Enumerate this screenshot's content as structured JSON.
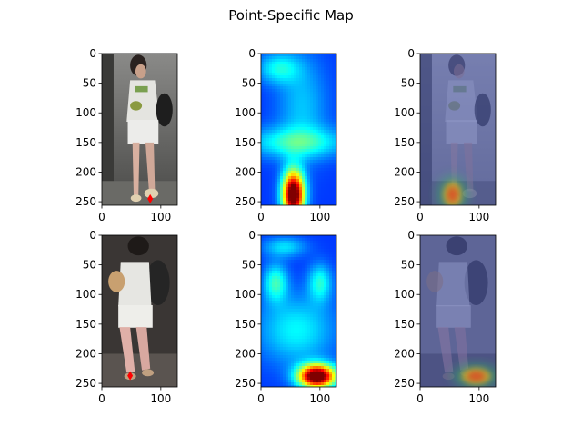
{
  "chart_data": {
    "type": "image-grid",
    "title": "Point-Specific Map",
    "rows": 2,
    "cols": 3,
    "panels": [
      {
        "row": 0,
        "col": 0,
        "kind": "photo",
        "scene": "walk1",
        "marker": {
          "x": 82,
          "y": 245,
          "color": "#ff0000",
          "shape": "diamond"
        }
      },
      {
        "row": 0,
        "col": 1,
        "kind": "heatmap",
        "hot": [
          {
            "x": 55,
            "y": 238,
            "sx": 13,
            "sy": 28,
            "w": 1.0
          }
        ],
        "warm": [
          {
            "x": 30,
            "y": 25,
            "sx": 25,
            "sy": 18,
            "w": 0.35
          },
          {
            "x": 60,
            "y": 150,
            "sx": 60,
            "sy": 18,
            "w": 0.4
          },
          {
            "x": 70,
            "y": 90,
            "sx": 30,
            "sy": 60,
            "w": 0.25
          }
        ]
      },
      {
        "row": 0,
        "col": 2,
        "kind": "overlay",
        "scene": "walk1",
        "hot": [
          {
            "x": 55,
            "y": 238,
            "sx": 16,
            "sy": 24,
            "w": 1.0
          }
        ]
      },
      {
        "row": 1,
        "col": 0,
        "kind": "photo",
        "scene": "walk2",
        "marker": {
          "x": 48,
          "y": 237,
          "color": "#ff0000",
          "shape": "diamond"
        }
      },
      {
        "row": 1,
        "col": 1,
        "kind": "heatmap",
        "hot": [
          {
            "x": 95,
            "y": 238,
            "sx": 22,
            "sy": 14,
            "w": 1.0
          }
        ],
        "warm": [
          {
            "x": 25,
            "y": 80,
            "sx": 14,
            "sy": 22,
            "w": 0.45
          },
          {
            "x": 100,
            "y": 80,
            "sx": 14,
            "sy": 22,
            "w": 0.4
          },
          {
            "x": 40,
            "y": 20,
            "sx": 25,
            "sy": 12,
            "w": 0.3
          },
          {
            "x": 60,
            "y": 160,
            "sx": 45,
            "sy": 40,
            "w": 0.35
          }
        ]
      },
      {
        "row": 1,
        "col": 2,
        "kind": "overlay",
        "scene": "walk2",
        "hot": [
          {
            "x": 95,
            "y": 238,
            "sx": 25,
            "sy": 16,
            "w": 1.0
          }
        ]
      }
    ],
    "xlim": [
      0,
      128
    ],
    "ylim": [
      256,
      0
    ],
    "xticks": [
      0,
      100
    ],
    "yticks": [
      0,
      50,
      100,
      150,
      200,
      250
    ]
  }
}
